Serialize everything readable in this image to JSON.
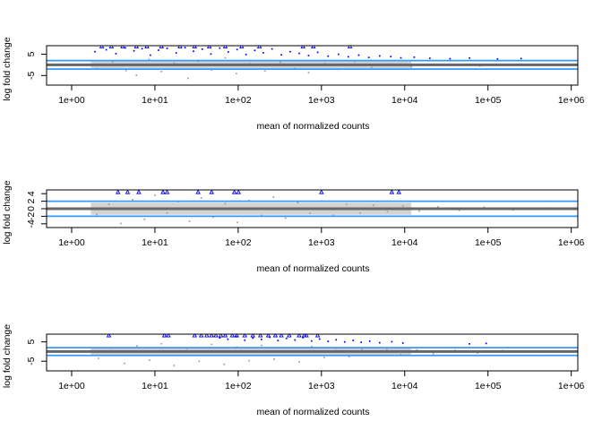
{
  "chart_data": [
    {
      "type": "scatter",
      "title": "",
      "xlabel": "mean of normalized counts",
      "ylabel": "log fold change",
      "x_scale": "log10",
      "xlim": [
        0.5,
        1200000
      ],
      "ylim": [
        -9.5,
        9
      ],
      "x_ticks": [
        1,
        10,
        100,
        1000,
        10000,
        100000,
        1000000
      ],
      "x_tick_labels": [
        "1e+00",
        "1e+01",
        "1e+02",
        "1e+03",
        "1e+04",
        "1e+05",
        "1e+06"
      ],
      "y_ticks": [
        5,
        -5
      ],
      "y_tick_labels": [
        "5",
        "-5"
      ],
      "hlines": [
        {
          "y": 0,
          "color": "#666666"
        },
        {
          "y": 2,
          "color": "#3399ff"
        },
        {
          "y": -2,
          "color": "#3399ff"
        }
      ],
      "series": [
        {
          "color": "#9e9e9e",
          "marker": "dot",
          "points": [
            [
              2.0,
              -1.8
            ],
            [
              3.1,
              1.4
            ],
            [
              4.5,
              -2.6
            ],
            [
              6.0,
              -4.8
            ],
            [
              8.5,
              2.6
            ],
            [
              12,
              -3.1
            ],
            [
              17,
              0.9
            ],
            [
              25,
              -6.3
            ],
            [
              33,
              1.7
            ],
            [
              48,
              -2.4
            ],
            [
              70,
              3.3
            ],
            [
              95,
              -4.1
            ],
            [
              140,
              0.6
            ],
            [
              210,
              -2.9
            ],
            [
              320,
              1.2
            ],
            [
              480,
              -1.6
            ],
            [
              700,
              -3.6
            ],
            [
              1100,
              0.8
            ],
            [
              1600,
              -2.1
            ],
            [
              2500,
              1.5
            ],
            [
              4000,
              -1.2
            ],
            [
              6500,
              0.4
            ],
            [
              12000,
              -0.9
            ],
            [
              30000,
              0.3
            ],
            [
              80000,
              -0.5
            ],
            [
              350000,
              0.2
            ]
          ]
        },
        {
          "color": "#0000ff",
          "marker": "dot",
          "points": [
            [
              1.9,
              6.2
            ],
            [
              2.6,
              7.1
            ],
            [
              3.4,
              5.3
            ],
            [
              4.4,
              8.0
            ],
            [
              5.6,
              6.6
            ],
            [
              7.0,
              7.6
            ],
            [
              8.8,
              4.6
            ],
            [
              11,
              6.9
            ],
            [
              14,
              7.8
            ],
            [
              18,
              5.6
            ],
            [
              23,
              8.1
            ],
            [
              29,
              6.4
            ],
            [
              37,
              7.4
            ],
            [
              47,
              5.1
            ],
            [
              60,
              7.9
            ],
            [
              76,
              6.1
            ],
            [
              97,
              7.2
            ],
            [
              124,
              4.9
            ],
            [
              158,
              6.8
            ],
            [
              200,
              5.7
            ],
            [
              255,
              7.5
            ],
            [
              330,
              4.7
            ],
            [
              420,
              6.2
            ],
            [
              540,
              5.4
            ],
            [
              700,
              4.4
            ],
            [
              900,
              5.9
            ],
            [
              1200,
              4.1
            ],
            [
              1600,
              5.0
            ],
            [
              2100,
              3.8
            ],
            [
              2800,
              4.6
            ],
            [
              3700,
              3.5
            ],
            [
              5000,
              4.2
            ],
            [
              6800,
              3.9
            ],
            [
              9000,
              3.3
            ],
            [
              13000,
              3.6
            ],
            [
              20000,
              3.1
            ],
            [
              35000,
              2.9
            ],
            [
              60000,
              3.2
            ],
            [
              130000,
              2.8
            ],
            [
              250000,
              3.0
            ]
          ]
        },
        {
          "color": "#0000ff",
          "marker": "triangle",
          "points": [
            [
              2.3,
              8.6
            ],
            [
              3.0,
              8.6
            ],
            [
              4.1,
              8.6
            ],
            [
              6.0,
              8.6
            ],
            [
              8.0,
              8.6
            ],
            [
              12,
              8.6
            ],
            [
              20,
              8.6
            ],
            [
              30,
              8.6
            ],
            [
              45,
              8.6
            ],
            [
              70,
              8.6
            ],
            [
              110,
              8.6
            ],
            [
              180,
              8.6
            ],
            [
              600,
              8.6
            ],
            [
              800,
              8.6
            ],
            [
              2200,
              8.6
            ]
          ]
        }
      ]
    },
    {
      "type": "scatter",
      "title": "",
      "xlabel": "mean of normalized counts",
      "ylabel": "log fold change",
      "x_scale": "log10",
      "xlim": [
        0.5,
        1200000
      ],
      "ylim": [
        -5,
        5
      ],
      "x_ticks": [
        1,
        10,
        100,
        1000,
        10000,
        100000,
        1000000
      ],
      "x_tick_labels": [
        "1e+00",
        "1e+01",
        "1e+02",
        "1e+03",
        "1e+04",
        "1e+05",
        "1e+06"
      ],
      "y_ticks": [
        4,
        2,
        0,
        -2,
        -4
      ],
      "y_tick_labels": [
        "4",
        "2",
        "0",
        "-2",
        "-4"
      ],
      "hlines": [
        {
          "y": 0,
          "color": "#666666"
        },
        {
          "y": 2,
          "color": "#3399ff"
        },
        {
          "y": -2,
          "color": "#3399ff"
        }
      ],
      "series": [
        {
          "color": "#9e9e9e",
          "marker": "dot",
          "points": [
            [
              2.0,
              -1.5
            ],
            [
              2.8,
              1.2
            ],
            [
              3.9,
              -3.9
            ],
            [
              5.4,
              2.4
            ],
            [
              7.5,
              -2.8
            ],
            [
              10,
              3.6
            ],
            [
              14,
              -1.1
            ],
            [
              19,
              1.9
            ],
            [
              26,
              -3.3
            ],
            [
              36,
              2.9
            ],
            [
              50,
              -2.2
            ],
            [
              70,
              1.4
            ],
            [
              98,
              -3.6
            ],
            [
              135,
              2.2
            ],
            [
              190,
              -1.8
            ],
            [
              265,
              3.1
            ],
            [
              370,
              -2.5
            ],
            [
              520,
              1.6
            ],
            [
              730,
              -1.2
            ],
            [
              1000,
              2.0
            ],
            [
              1400,
              -1.7
            ],
            [
              2000,
              1.3
            ],
            [
              2900,
              -1.1
            ],
            [
              4200,
              0.9
            ],
            [
              6200,
              -0.8
            ],
            [
              9500,
              0.7
            ],
            [
              15000,
              -0.6
            ],
            [
              25000,
              0.5
            ],
            [
              45000,
              -0.4
            ],
            [
              90000,
              0.4
            ],
            [
              200000,
              -0.3
            ],
            [
              500000,
              0.2
            ]
          ]
        },
        {
          "color": "#0000ff",
          "marker": "triangle",
          "points": [
            [
              3.6,
              4.4
            ],
            [
              4.7,
              4.4
            ],
            [
              6.4,
              4.4
            ],
            [
              12.5,
              4.4
            ],
            [
              14,
              4.4
            ],
            [
              33,
              4.4
            ],
            [
              48,
              4.4
            ],
            [
              90,
              4.4
            ],
            [
              101,
              4.4
            ],
            [
              1000,
              4.4
            ],
            [
              7000,
              4.4
            ],
            [
              8500,
              4.4
            ]
          ]
        }
      ]
    },
    {
      "type": "scatter",
      "title": "",
      "xlabel": "mean of normalized counts",
      "ylabel": "log fold change",
      "x_scale": "log10",
      "xlim": [
        0.5,
        1200000
      ],
      "ylim": [
        -10,
        9
      ],
      "x_ticks": [
        1,
        10,
        100,
        1000,
        10000,
        100000,
        1000000
      ],
      "x_tick_labels": [
        "1e+00",
        "1e+01",
        "1e+02",
        "1e+03",
        "1e+04",
        "1e+05",
        "1e+06"
      ],
      "y_ticks": [
        5,
        -5
      ],
      "y_tick_labels": [
        "5",
        "-5"
      ],
      "hlines": [
        {
          "y": 0,
          "color": "#666666"
        },
        {
          "y": 2,
          "color": "#3399ff"
        },
        {
          "y": -2,
          "color": "#3399ff"
        }
      ],
      "series": [
        {
          "color": "#9e9e9e",
          "marker": "dot",
          "points": [
            [
              2.1,
              -3.5
            ],
            [
              3.0,
              1.8
            ],
            [
              4.3,
              -6.1
            ],
            [
              6.1,
              2.9
            ],
            [
              8.6,
              -4.4
            ],
            [
              12,
              4.1
            ],
            [
              17,
              -7.2
            ],
            [
              24,
              1.6
            ],
            [
              34,
              -5.0
            ],
            [
              48,
              3.7
            ],
            [
              68,
              -6.6
            ],
            [
              96,
              2.3
            ],
            [
              135,
              -4.7
            ],
            [
              190,
              3.2
            ],
            [
              270,
              -3.9
            ],
            [
              380,
              1.9
            ],
            [
              540,
              -5.3
            ],
            [
              760,
              2.6
            ],
            [
              1080,
              -3.1
            ],
            [
              1520,
              1.7
            ],
            [
              2150,
              -2.6
            ],
            [
              3050,
              1.3
            ],
            [
              4300,
              -2.0
            ],
            [
              6100,
              1.0
            ],
            [
              9000,
              -1.5
            ],
            [
              14000,
              0.8
            ],
            [
              22000,
              -1.0
            ],
            [
              40000,
              0.6
            ],
            [
              75000,
              -0.7
            ],
            [
              150000,
              0.5
            ],
            [
              400000,
              -0.3
            ]
          ]
        },
        {
          "color": "#0000ff",
          "marker": "dot",
          "points": [
            [
              60,
              7.1
            ],
            [
              75,
              6.4
            ],
            [
              95,
              7.7
            ],
            [
              120,
              5.9
            ],
            [
              150,
              7.0
            ],
            [
              190,
              6.3
            ],
            [
              240,
              7.4
            ],
            [
              300,
              5.7
            ],
            [
              380,
              6.8
            ],
            [
              480,
              6.0
            ],
            [
              600,
              7.2
            ],
            [
              760,
              5.5
            ],
            [
              950,
              6.5
            ],
            [
              1200,
              5.3
            ],
            [
              1500,
              6.1
            ],
            [
              1900,
              5.0
            ],
            [
              2400,
              5.8
            ],
            [
              3000,
              4.8
            ],
            [
              3800,
              5.4
            ],
            [
              5000,
              4.6
            ],
            [
              7000,
              5.1
            ],
            [
              9500,
              4.4
            ],
            [
              60000,
              4.0
            ],
            [
              95000,
              4.2
            ]
          ]
        },
        {
          "color": "#0000ff",
          "marker": "triangle",
          "points": [
            [
              2.8,
              8.3
            ],
            [
              13,
              8.3
            ],
            [
              14.5,
              8.3
            ],
            [
              30,
              8.3
            ],
            [
              36,
              8.3
            ],
            [
              42,
              8.3
            ],
            [
              48,
              8.3
            ],
            [
              54,
              8.3
            ],
            [
              62,
              8.3
            ],
            [
              70,
              8.3
            ],
            [
              85,
              8.3
            ],
            [
              96,
              8.3
            ],
            [
              120,
              8.3
            ],
            [
              150,
              8.3
            ],
            [
              185,
              8.3
            ],
            [
              230,
              8.3
            ],
            [
              280,
              8.3
            ],
            [
              330,
              8.3
            ],
            [
              410,
              8.3
            ],
            [
              540,
              8.3
            ],
            [
              620,
              8.3
            ],
            [
              660,
              8.3
            ],
            [
              900,
              8.3
            ]
          ]
        }
      ]
    }
  ]
}
